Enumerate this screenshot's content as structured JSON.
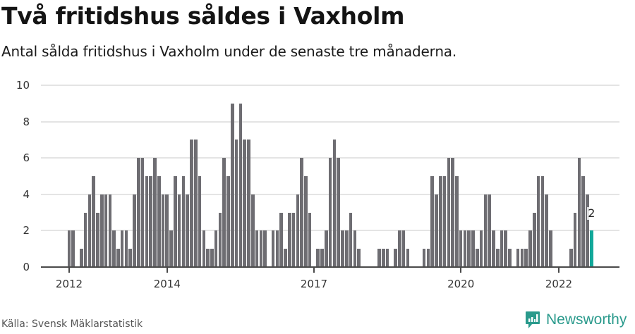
{
  "header": {
    "title": "Två fritidshus såldes i Vaxholm",
    "subtitle": "Antal sålda fritidshus i Vaxholm under de senaste tre månaderna."
  },
  "footer": {
    "source": "Källa: Svensk Mäklarstatistik",
    "brand": "Newsworthy",
    "brand_icon": "bar-chart-speech-bubble-icon"
  },
  "colors": {
    "bar": "#6e6d72",
    "highlight": "#12a89a",
    "grid": "#e4e4e4",
    "axis": "#4a4a4a",
    "brand": "#2a9a8c"
  },
  "chart_data": {
    "type": "bar",
    "title": "Två fritidshus såldes i Vaxholm",
    "subtitle": "Antal sålda fritidshus i Vaxholm under de senaste tre månaderna.",
    "xlabel": "",
    "ylabel": "",
    "ylim": [
      0,
      10
    ],
    "yticks": [
      0,
      2,
      4,
      6,
      8,
      10
    ],
    "xticks": [
      {
        "label": "2012",
        "index": 0
      },
      {
        "label": "2014",
        "index": 24
      },
      {
        "label": "2017",
        "index": 60
      },
      {
        "label": "2020",
        "index": 96
      },
      {
        "label": "2022",
        "index": 120
      }
    ],
    "grid": true,
    "start_month": "2012-01",
    "end_month": "2022-09",
    "frequency": "monthly",
    "series": [
      {
        "name": "Antal sålda fritidshus",
        "values": [
          2,
          2,
          0,
          1,
          3,
          4,
          5,
          3,
          4,
          4,
          4,
          2,
          1,
          2,
          2,
          1,
          4,
          6,
          6,
          5,
          5,
          6,
          5,
          4,
          4,
          2,
          5,
          4,
          5,
          4,
          7,
          7,
          5,
          2,
          1,
          1,
          2,
          3,
          6,
          5,
          9,
          7,
          9,
          7,
          7,
          4,
          2,
          2,
          2,
          0,
          2,
          2,
          3,
          1,
          3,
          3,
          4,
          6,
          5,
          3,
          0,
          1,
          1,
          2,
          6,
          7,
          6,
          2,
          2,
          3,
          2,
          1,
          0,
          0,
          0,
          0,
          1,
          1,
          1,
          0,
          1,
          2,
          2,
          1,
          0,
          0,
          0,
          1,
          1,
          5,
          4,
          5,
          5,
          6,
          6,
          5,
          2,
          2,
          2,
          2,
          1,
          2,
          4,
          4,
          2,
          1,
          2,
          2,
          1,
          0,
          1,
          1,
          1,
          2,
          3,
          5,
          5,
          4,
          2,
          0,
          0,
          0,
          0,
          1,
          3,
          6,
          5,
          4,
          2
        ]
      }
    ],
    "annotations": [
      {
        "text": "2",
        "index": 128,
        "note": "latest value, highlighted"
      }
    ]
  }
}
